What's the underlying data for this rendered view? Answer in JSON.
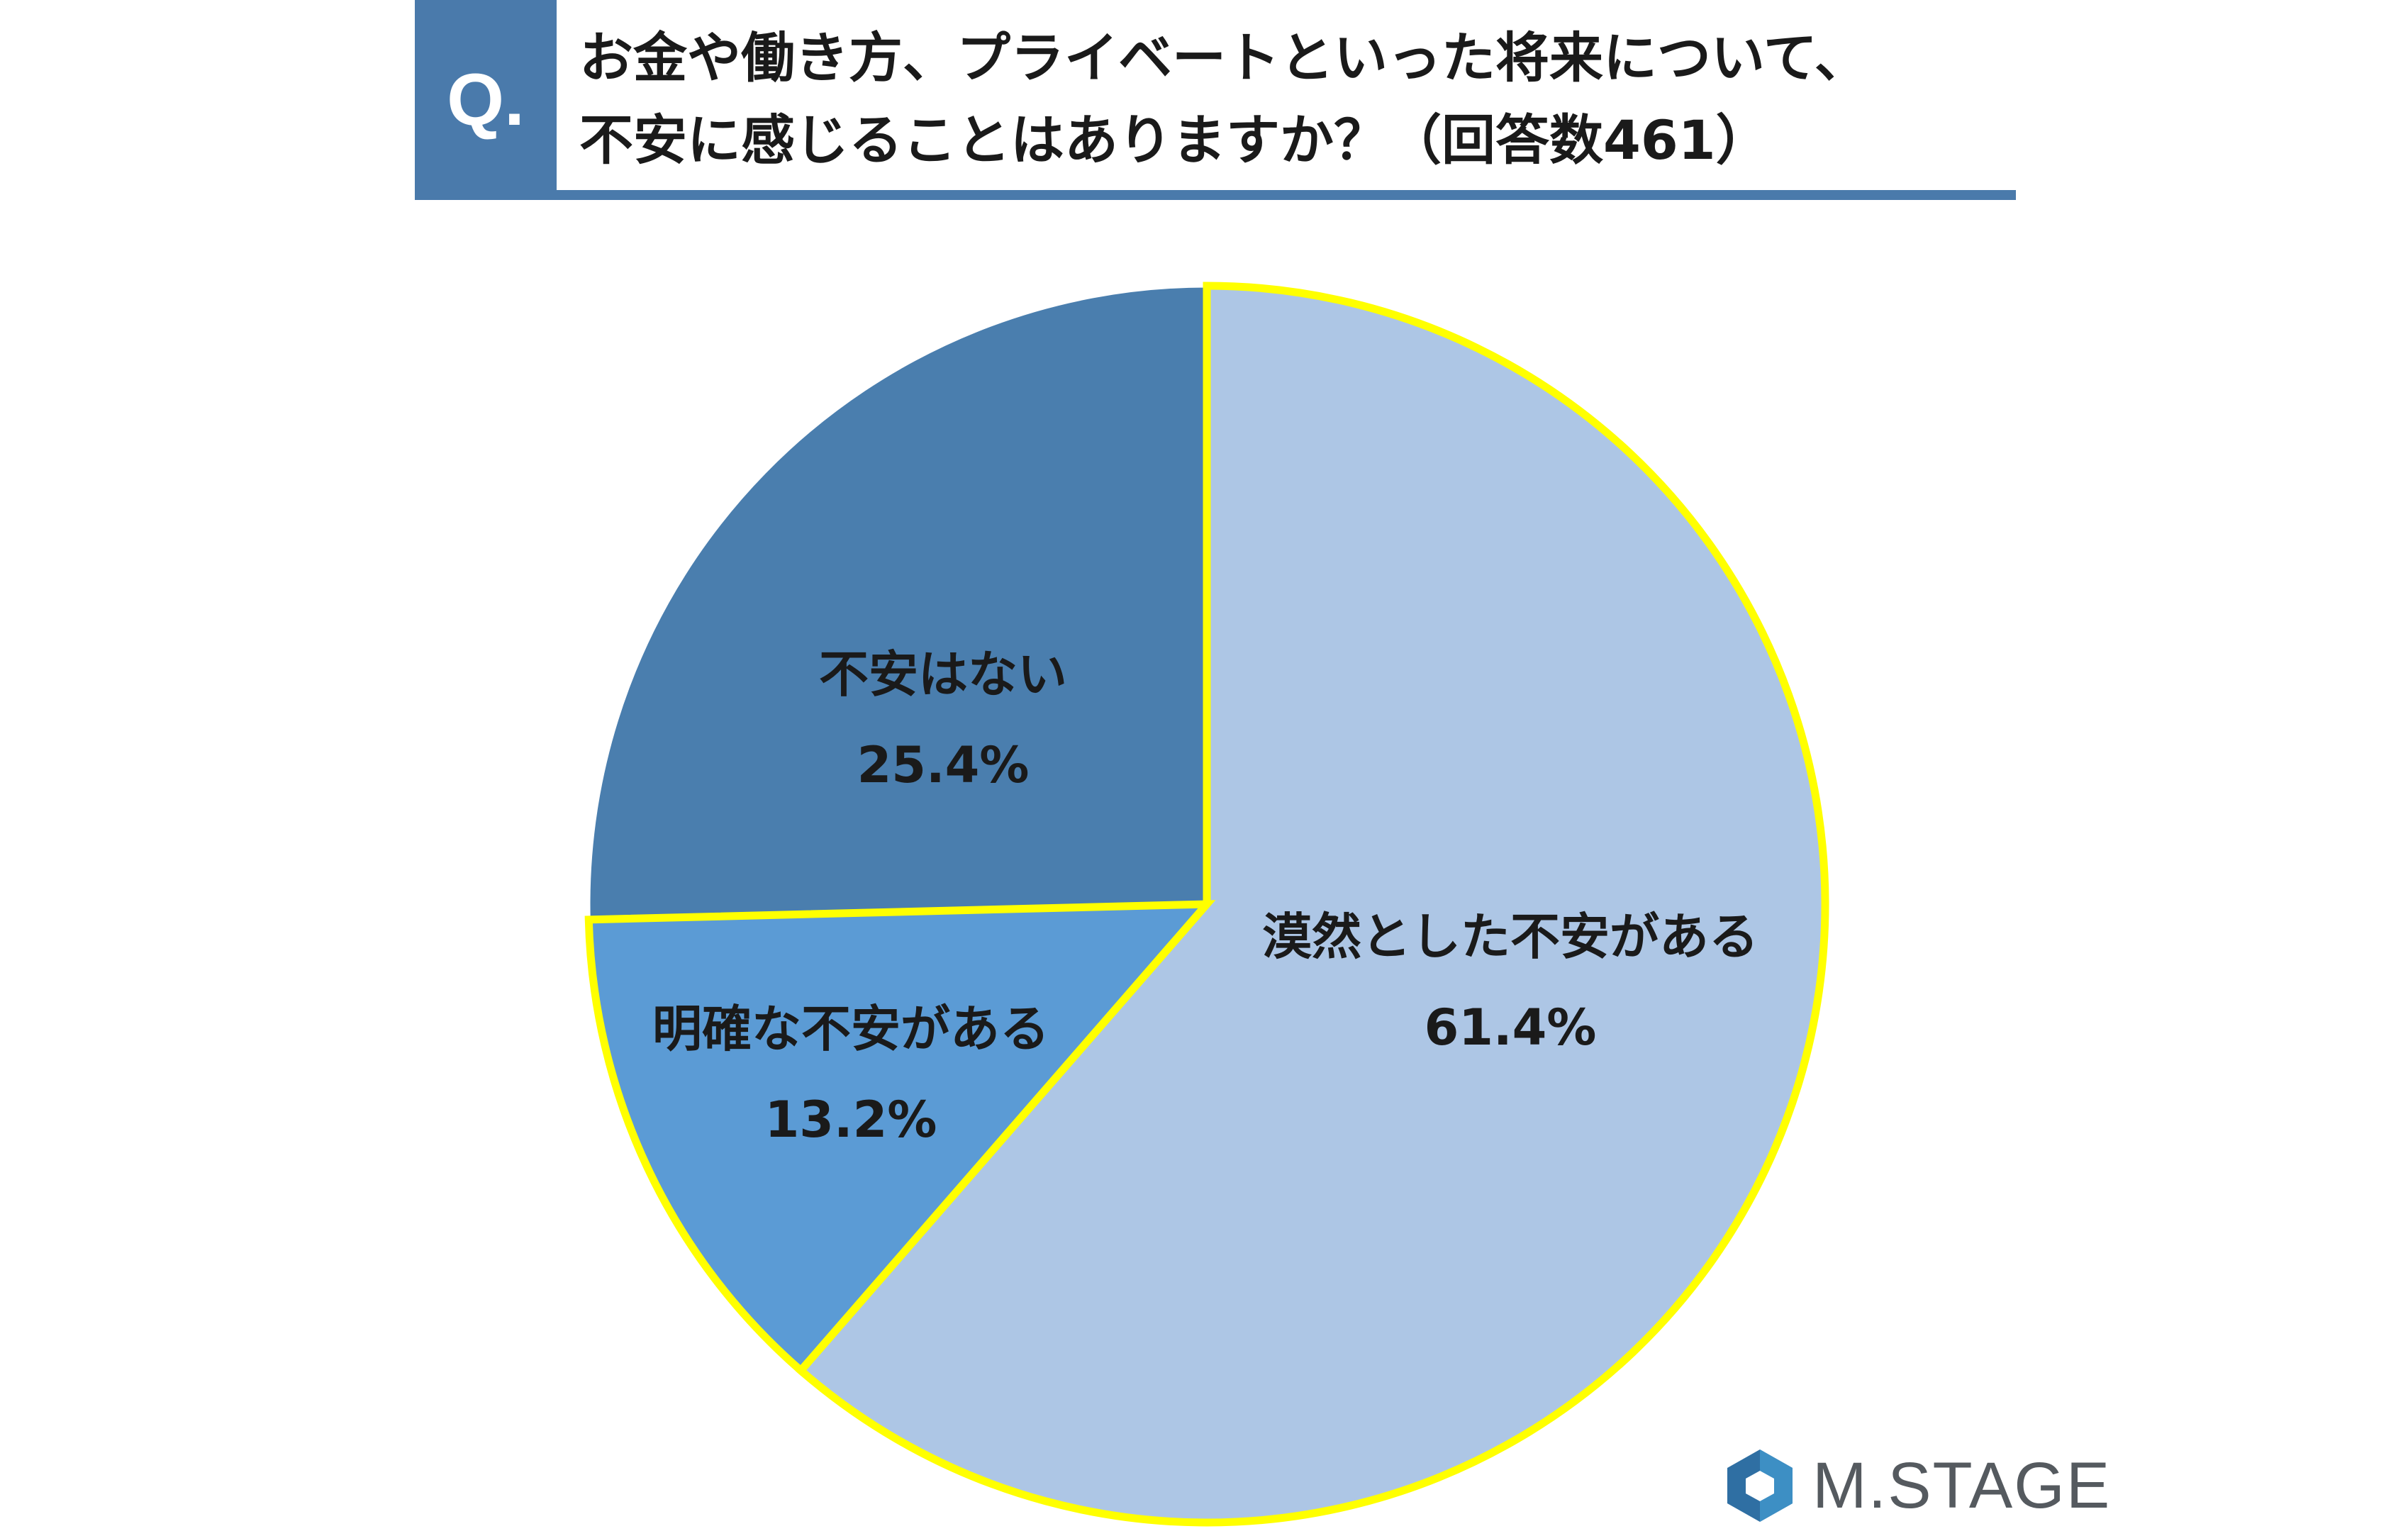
{
  "header": {
    "q_label": "Q.",
    "title_line1": "お金や働き方、プライベートといった将来について、",
    "title_line2": "不安に感じることはありますか？（回答数461）"
  },
  "chart_data": {
    "type": "pie",
    "slices": [
      {
        "label": "漠然とした不安がある",
        "value": 61.4,
        "value_label": "61.4%",
        "color": "#adc6e5",
        "highlight": true
      },
      {
        "label": "明確な不安がある",
        "value": 13.2,
        "value_label": "13.2%",
        "color": "#5b9bd5",
        "highlight": true
      },
      {
        "label": "不安はない",
        "value": 25.4,
        "value_label": "25.4%",
        "color": "#4a7eae",
        "highlight": false
      }
    ],
    "start": "12 o'clock",
    "direction": "clockwise",
    "highlight_color": "#ffff00"
  },
  "logo": {
    "text": "M.STAGE",
    "icon": "hexagon-logo-icon"
  }
}
